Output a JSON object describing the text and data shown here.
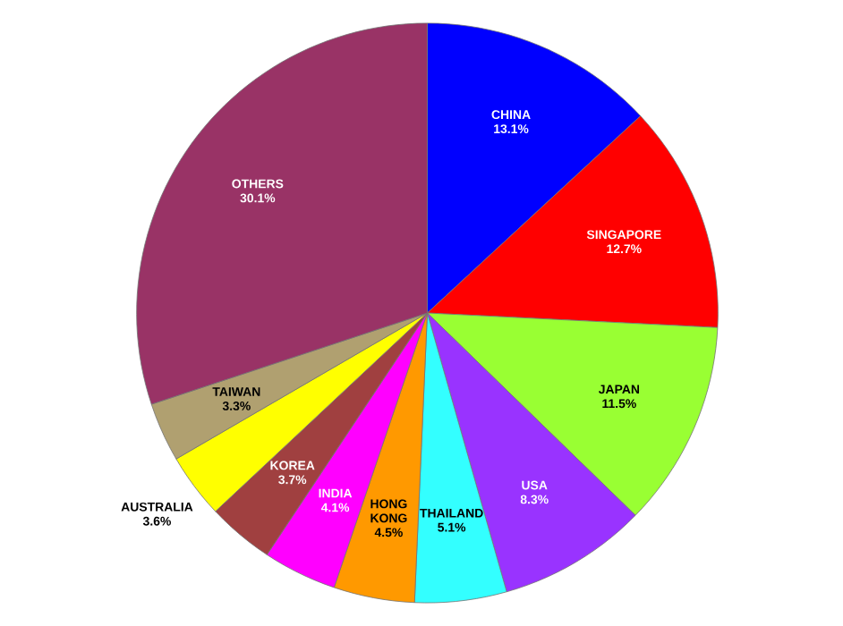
{
  "chart_data": {
    "type": "pie",
    "categories": [
      "CHINA",
      "SINGAPORE",
      "JAPAN",
      "USA",
      "THAILAND",
      "HONG KONG",
      "INDIA",
      "KOREA",
      "AUSTRALIA",
      "TAIWAN",
      "OTHERS"
    ],
    "values": [
      13.1,
      12.7,
      11.5,
      8.3,
      5.1,
      4.5,
      4.1,
      3.7,
      3.6,
      3.3,
      30.1
    ],
    "value_labels": [
      "13.1%",
      "12.7%",
      "11.5%",
      "8.3%",
      "5.1%",
      "4.5%",
      "4.1%",
      "3.7%",
      "3.6%",
      "3.3%",
      "30.1%"
    ],
    "colors": [
      "#0000ff",
      "#ff0000",
      "#99ff33",
      "#9933ff",
      "#33ffff",
      "#ff9900",
      "#ff00ff",
      "#a04040",
      "#ffff00",
      "#b0a070",
      "#993366"
    ]
  }
}
